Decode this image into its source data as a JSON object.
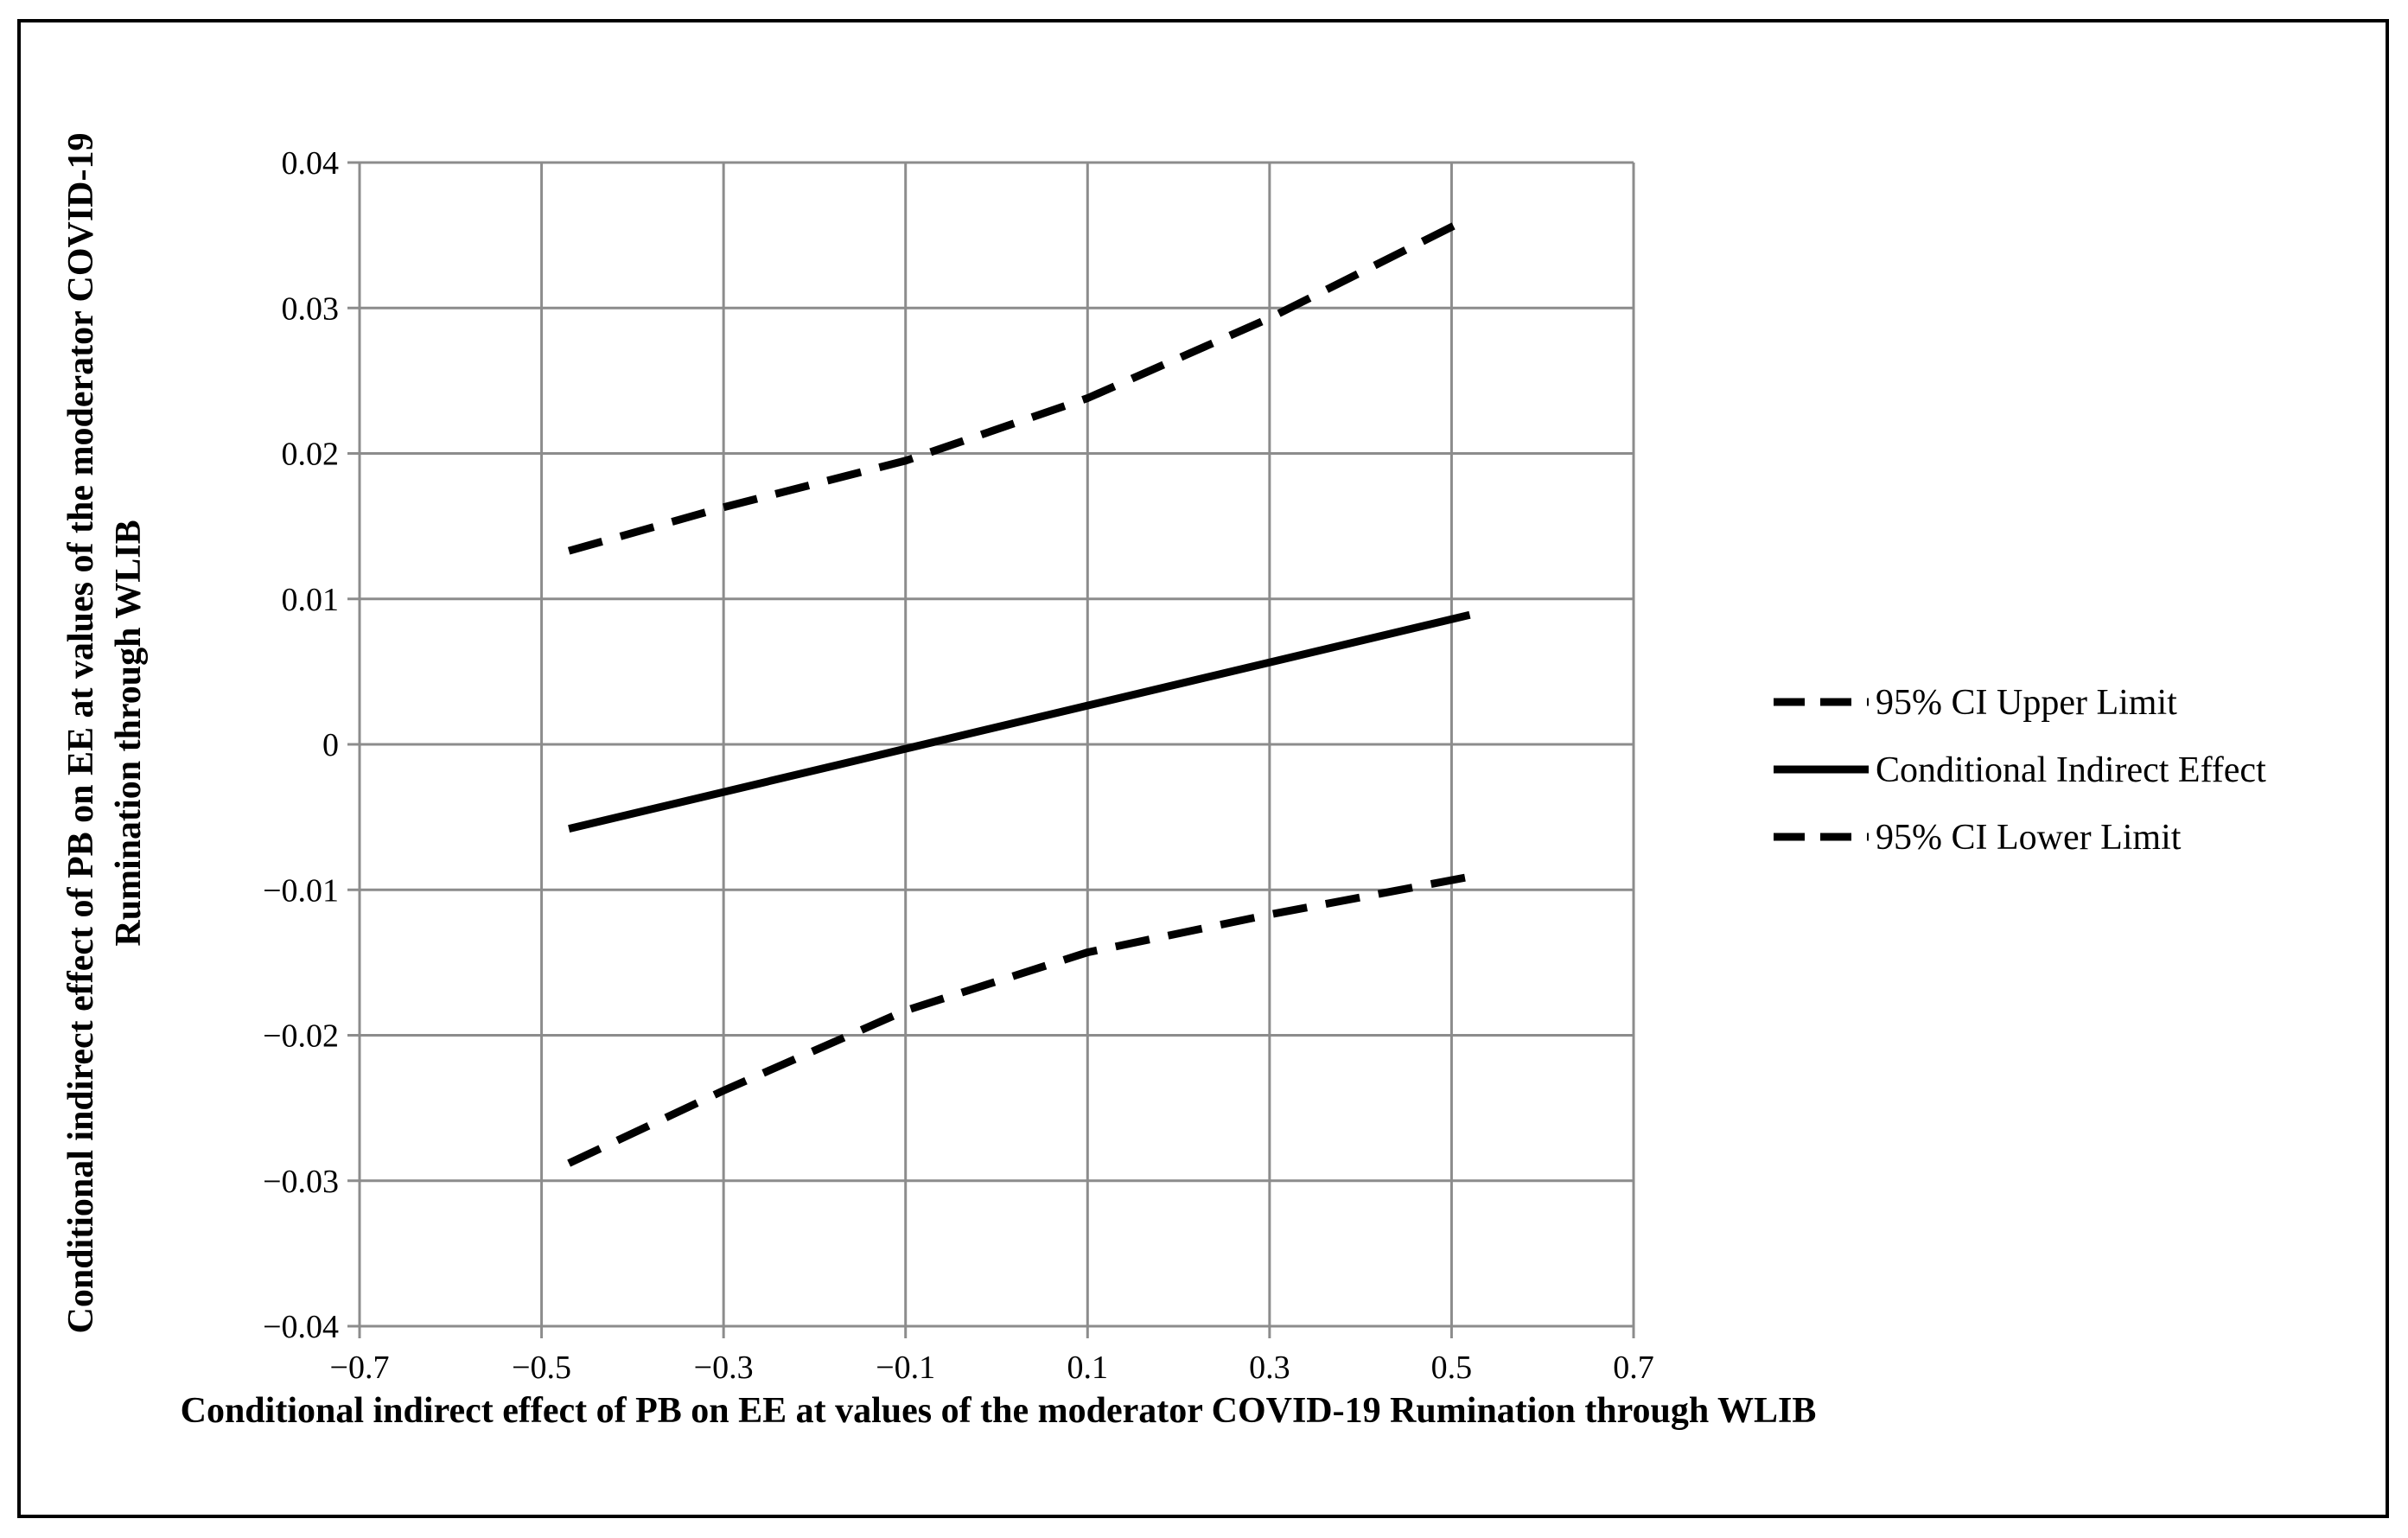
{
  "chart_data": {
    "type": "line",
    "title": "",
    "xlabel": "Conditional indirect effect of PB on EE at values of the moderator COVID-19 Rumination through WLIB",
    "ylabel": "Conditional indirect effect of PB on EE at values of the moderator COVID-19 Rumination through WLIB",
    "xlim": [
      -0.7,
      0.7
    ],
    "ylim": [
      -0.04,
      0.04
    ],
    "x_ticks": [
      -0.7,
      -0.5,
      -0.3,
      -0.1,
      0.1,
      0.3,
      0.5,
      0.7
    ],
    "y_ticks": [
      0.04,
      0.03,
      0.02,
      0.01,
      0,
      -0.01,
      -0.02,
      -0.03,
      -0.04
    ],
    "x_tick_labels": [
      "−0.7",
      "−0.5",
      "−0.3",
      "−0.1",
      "0.1",
      "0.3",
      "0.5",
      "0.7"
    ],
    "y_tick_labels": [
      "0.04",
      "0.03",
      "0.02",
      "0.01",
      "0",
      "−0.01",
      "−0.02",
      "−0.03",
      "−0.04"
    ],
    "grid": true,
    "legend_position": "right",
    "series": [
      {
        "name": "95% CI Upper Limit",
        "style": "dashed",
        "color": "#000000",
        "x": [
          -0.47,
          -0.3,
          -0.1,
          0.1,
          0.3,
          0.52
        ],
        "y": [
          0.0133,
          0.0163,
          0.0195,
          0.0238,
          0.0293,
          0.0362
        ]
      },
      {
        "name": "Conditional Indirect Effect",
        "style": "solid",
        "color": "#000000",
        "x": [
          -0.47,
          0.52
        ],
        "y": [
          -0.0058,
          0.0089
        ]
      },
      {
        "name": "95% CI Lower Limit",
        "style": "dashed",
        "color": "#000000",
        "x": [
          -0.47,
          -0.3,
          -0.1,
          0.1,
          0.3,
          0.52
        ],
        "y": [
          -0.0288,
          -0.0238,
          -0.0183,
          -0.0143,
          -0.0117,
          -0.0091
        ]
      }
    ]
  }
}
